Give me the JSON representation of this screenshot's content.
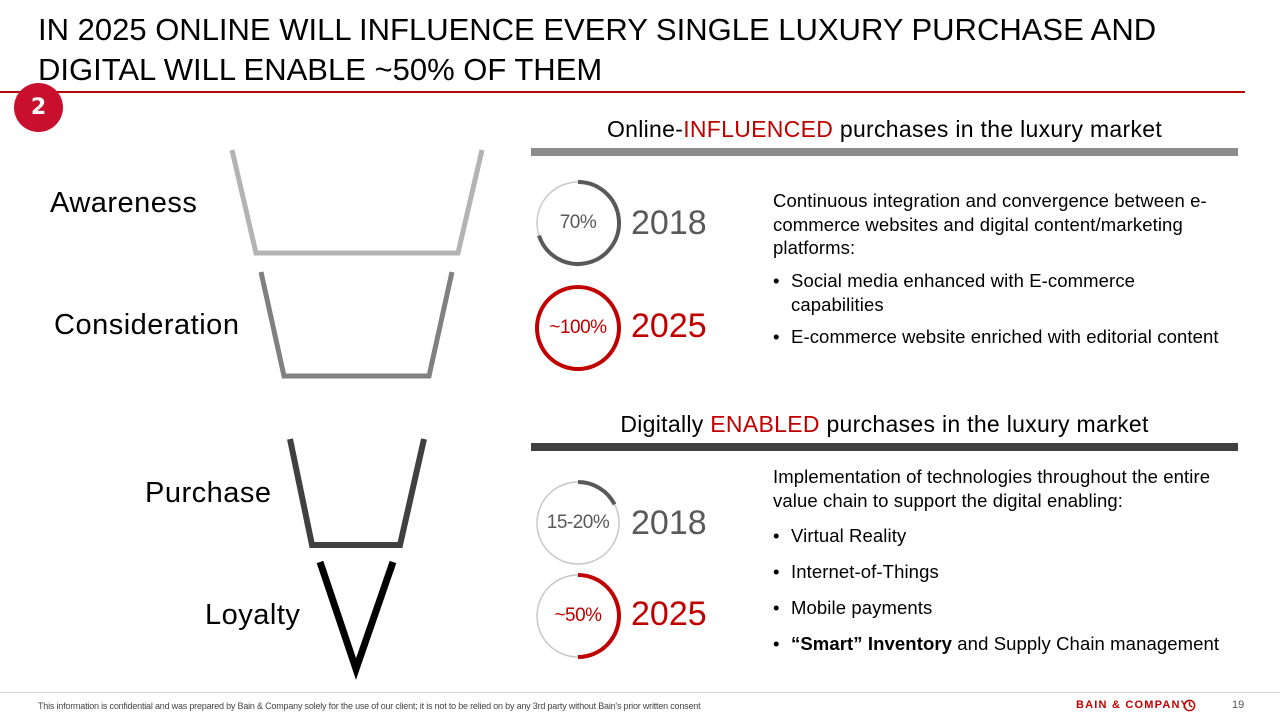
{
  "title": "IN 2025 ONLINE WILL INFLUENCE EVERY SINGLE LUXURY PURCHASE AND DIGITAL WILL ENABLE ~50% OF THEM",
  "badge": "2",
  "funnel": {
    "stages": [
      "Awareness",
      "Consideration",
      "Purchase",
      "Loyalty"
    ],
    "stage_colors": [
      "#b3b3b3",
      "#808080",
      "#404040",
      "#000000"
    ]
  },
  "influenced": {
    "head_prefix": "Online-",
    "head_accent": "INFLUENCED",
    "head_suffix": " purchases in the luxury market",
    "rule_color": "#8c8c8c",
    "items": [
      {
        "label": "70%",
        "year": "2018",
        "share": 0.7,
        "color": "#595959"
      },
      {
        "label": "~100%",
        "year": "2025",
        "share": 1.0,
        "color": "#c00000"
      }
    ],
    "description": "Continuous integration and convergence between e-commerce websites and digital content/marketing platforms:",
    "bullets": [
      "Social media enhanced with E-commerce capabilities",
      "E-commerce website enriched with editorial content"
    ]
  },
  "enabled": {
    "head_prefix": "Digitally ",
    "head_accent": "ENABLED",
    "head_suffix": " purchases in the luxury market",
    "rule_color": "#404040",
    "items": [
      {
        "label": "15-20%",
        "year": "2018",
        "share": 0.175,
        "color": "#595959"
      },
      {
        "label": "~50%",
        "year": "2025",
        "share": 0.5,
        "color": "#c00000"
      }
    ],
    "description": "Implementation of technologies throughout the entire value chain to support the digital enabling:",
    "bullets": [
      "Virtual Reality",
      "Internet-of-Things",
      "Mobile payments"
    ],
    "last_bullet_bold": "“Smart” Inventory",
    "last_bullet_rest": " and Supply Chain management"
  },
  "footer": {
    "note": "This information is confidential and was prepared by Bain & Company solely for the use of our client; it is not to be relied on by any 3rd party without Bain's prior written consent",
    "brand": "BAIN & COMPANY",
    "page": "19"
  }
}
